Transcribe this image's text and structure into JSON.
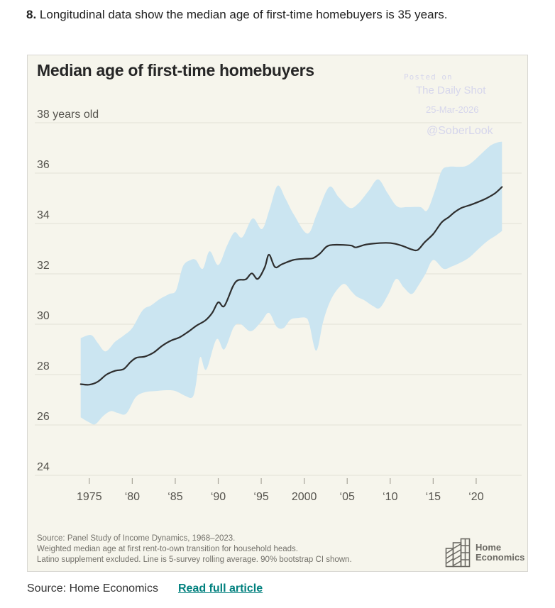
{
  "page": {
    "headline_number": "8.",
    "headline_text": " Longitudinal data show the median age of first-time homebuyers is 35 years.",
    "footer_source": "Source: Home Economics",
    "footer_link": "Read full article"
  },
  "watermark": {
    "line1": "Posted on",
    "line2": "The Daily Shot",
    "line3": "25-Mar-2026",
    "line4": "@SoberLook",
    "color": "#d6d6ec"
  },
  "chart": {
    "title": "Median age of first-time homebuyers",
    "notes": [
      "Source: Panel Study of Income Dynamics, 1968–2023.",
      "Weighted median age at first rent-to-own transition for household heads.",
      "Latino supplement excluded. Line is 5-survey rolling average. 90% bootstrap CI shown."
    ],
    "logo_line1": "Home",
    "logo_line2": "Economics"
  },
  "chart_data": {
    "type": "line",
    "title": "Median age of first-time homebuyers",
    "ylabel": "years old",
    "x_axis": {
      "min": 1968.7,
      "max": 2025.3,
      "ticks": [
        {
          "year": 1975,
          "label": "1975"
        },
        {
          "year": 1980,
          "label": "‘80"
        },
        {
          "year": 1985,
          "label": "‘85"
        },
        {
          "year": 1990,
          "label": "‘90"
        },
        {
          "year": 1995,
          "label": "‘95"
        },
        {
          "year": 2000,
          "label": "2000"
        },
        {
          "year": 2005,
          "label": "‘05"
        },
        {
          "year": 2010,
          "label": "‘10"
        },
        {
          "year": 2015,
          "label": "‘15"
        },
        {
          "year": 2020,
          "label": "‘20"
        }
      ]
    },
    "y_axis": {
      "min": 23.5,
      "max": 38.6,
      "ticks": [
        {
          "value": 38,
          "label": "38 years old"
        },
        {
          "value": 36,
          "label": "36"
        },
        {
          "value": 34,
          "label": "34"
        },
        {
          "value": 32,
          "label": "32"
        },
        {
          "value": 30,
          "label": "30"
        },
        {
          "value": 28,
          "label": "28"
        },
        {
          "value": 26,
          "label": "26"
        },
        {
          "value": 24,
          "label": "24"
        }
      ]
    },
    "series": [
      {
        "name": "median-age-5-survey-rolling-average",
        "points": [
          [
            1974.0,
            27.62
          ],
          [
            1975.0,
            27.6
          ],
          [
            1976.0,
            27.72
          ],
          [
            1977.0,
            28.0
          ],
          [
            1978.0,
            28.15
          ],
          [
            1979.0,
            28.22
          ],
          [
            1979.8,
            28.5
          ],
          [
            1980.5,
            28.67
          ],
          [
            1981.5,
            28.72
          ],
          [
            1982.5,
            28.88
          ],
          [
            1983.5,
            29.15
          ],
          [
            1984.5,
            29.35
          ],
          [
            1985.5,
            29.48
          ],
          [
            1986.5,
            29.7
          ],
          [
            1987.5,
            29.95
          ],
          [
            1988.5,
            30.15
          ],
          [
            1989.3,
            30.45
          ],
          [
            1990.0,
            30.87
          ],
          [
            1990.7,
            30.72
          ],
          [
            1991.7,
            31.5
          ],
          [
            1992.3,
            31.75
          ],
          [
            1993.2,
            31.78
          ],
          [
            1993.9,
            32.02
          ],
          [
            1994.6,
            31.8
          ],
          [
            1995.4,
            32.25
          ],
          [
            1995.9,
            32.76
          ],
          [
            1996.6,
            32.27
          ],
          [
            1997.4,
            32.38
          ],
          [
            1998.7,
            32.55
          ],
          [
            2000.0,
            32.6
          ],
          [
            2001.0,
            32.62
          ],
          [
            2001.8,
            32.8
          ],
          [
            2002.6,
            33.08
          ],
          [
            2003.3,
            33.15
          ],
          [
            2004.5,
            33.15
          ],
          [
            2005.5,
            33.12
          ],
          [
            2006.0,
            33.05
          ],
          [
            2007.0,
            33.15
          ],
          [
            2008.0,
            33.2
          ],
          [
            2009.5,
            33.23
          ],
          [
            2010.5,
            33.2
          ],
          [
            2011.5,
            33.1
          ],
          [
            2012.5,
            32.97
          ],
          [
            2013.2,
            32.95
          ],
          [
            2014.0,
            33.25
          ],
          [
            2015.0,
            33.58
          ],
          [
            2016.0,
            34.05
          ],
          [
            2016.8,
            34.25
          ],
          [
            2017.5,
            34.45
          ],
          [
            2018.3,
            34.62
          ],
          [
            2019.2,
            34.72
          ],
          [
            2020.2,
            34.85
          ],
          [
            2021.2,
            35.0
          ],
          [
            2022.2,
            35.2
          ],
          [
            2023.0,
            35.45
          ]
        ]
      }
    ],
    "band": {
      "name": "90pct-bootstrap-ci",
      "upper": [
        [
          1974.0,
          29.45
        ],
        [
          1975.2,
          29.57
        ],
        [
          1976.0,
          29.25
        ],
        [
          1976.9,
          28.92
        ],
        [
          1978.0,
          29.3
        ],
        [
          1979.0,
          29.55
        ],
        [
          1980.0,
          29.85
        ],
        [
          1981.2,
          30.55
        ],
        [
          1982.2,
          30.75
        ],
        [
          1983.2,
          31.0
        ],
        [
          1984.3,
          31.2
        ],
        [
          1985.1,
          31.35
        ],
        [
          1985.9,
          32.3
        ],
        [
          1986.8,
          32.55
        ],
        [
          1987.4,
          32.55
        ],
        [
          1988.2,
          32.2
        ],
        [
          1989.0,
          32.9
        ],
        [
          1990.0,
          32.35
        ],
        [
          1991.0,
          33.1
        ],
        [
          1991.9,
          33.65
        ],
        [
          1992.8,
          33.45
        ],
        [
          1994.0,
          34.2
        ],
        [
          1995.1,
          33.78
        ],
        [
          1996.0,
          34.6
        ],
        [
          1996.9,
          35.5
        ],
        [
          1997.8,
          35.0
        ],
        [
          1998.8,
          34.35
        ],
        [
          2000.4,
          33.6
        ],
        [
          2001.5,
          34.4
        ],
        [
          2002.9,
          35.45
        ],
        [
          2004.0,
          35.05
        ],
        [
          2005.3,
          34.62
        ],
        [
          2006.3,
          34.8
        ],
        [
          2007.5,
          35.3
        ],
        [
          2008.6,
          35.75
        ],
        [
          2009.7,
          35.2
        ],
        [
          2010.8,
          34.68
        ],
        [
          2012.0,
          34.65
        ],
        [
          2013.5,
          34.65
        ],
        [
          2014.3,
          34.52
        ],
        [
          2015.2,
          35.3
        ],
        [
          2016.0,
          36.1
        ],
        [
          2016.8,
          36.25
        ],
        [
          2018.0,
          36.25
        ],
        [
          2018.8,
          36.28
        ],
        [
          2019.6,
          36.45
        ],
        [
          2020.7,
          36.8
        ],
        [
          2021.7,
          37.1
        ],
        [
          2022.5,
          37.22
        ],
        [
          2023.0,
          37.25
        ]
      ],
      "lower": [
        [
          1974.0,
          26.3
        ],
        [
          1975.0,
          26.1
        ],
        [
          1975.7,
          26.03
        ],
        [
          1976.6,
          26.35
        ],
        [
          1977.5,
          26.55
        ],
        [
          1978.3,
          26.48
        ],
        [
          1979.3,
          26.45
        ],
        [
          1980.4,
          27.1
        ],
        [
          1981.5,
          27.3
        ],
        [
          1982.8,
          27.35
        ],
        [
          1984.0,
          27.38
        ],
        [
          1985.0,
          27.35
        ],
        [
          1986.2,
          27.15
        ],
        [
          1987.0,
          27.1
        ],
        [
          1987.4,
          27.6
        ],
        [
          1987.9,
          28.7
        ],
        [
          1988.6,
          28.2
        ],
        [
          1989.8,
          29.4
        ],
        [
          1990.7,
          29.0
        ],
        [
          1991.8,
          29.88
        ],
        [
          1992.6,
          30.0
        ],
        [
          1993.8,
          29.72
        ],
        [
          1995.0,
          30.1
        ],
        [
          1995.9,
          30.45
        ],
        [
          1996.8,
          29.9
        ],
        [
          1997.6,
          29.85
        ],
        [
          1998.4,
          30.18
        ],
        [
          1999.3,
          30.25
        ],
        [
          2000.2,
          30.25
        ],
        [
          2000.6,
          30.0
        ],
        [
          2001.4,
          28.95
        ],
        [
          2002.2,
          30.1
        ],
        [
          2003.0,
          30.9
        ],
        [
          2003.9,
          31.4
        ],
        [
          2004.7,
          31.6
        ],
        [
          2005.5,
          31.3
        ],
        [
          2006.1,
          31.1
        ],
        [
          2007.0,
          30.95
        ],
        [
          2008.0,
          30.72
        ],
        [
          2008.8,
          30.65
        ],
        [
          2009.8,
          31.2
        ],
        [
          2010.7,
          31.8
        ],
        [
          2011.6,
          31.45
        ],
        [
          2012.5,
          31.2
        ],
        [
          2013.3,
          31.55
        ],
        [
          2014.1,
          32.0
        ],
        [
          2015.0,
          32.55
        ],
        [
          2016.2,
          32.2
        ],
        [
          2017.2,
          32.3
        ],
        [
          2018.2,
          32.45
        ],
        [
          2019.2,
          32.65
        ],
        [
          2020.3,
          33.0
        ],
        [
          2021.3,
          33.3
        ],
        [
          2022.2,
          33.5
        ],
        [
          2023.0,
          33.7
        ]
      ]
    },
    "colors": {
      "line": "#2e2e2e",
      "band": "#cbe5f1",
      "grid": "#e3e1d6",
      "tick_mark": "#a8a59a",
      "tick_label": "#55534d",
      "background": "#f6f5ec"
    },
    "grid": true,
    "legend": "none"
  }
}
